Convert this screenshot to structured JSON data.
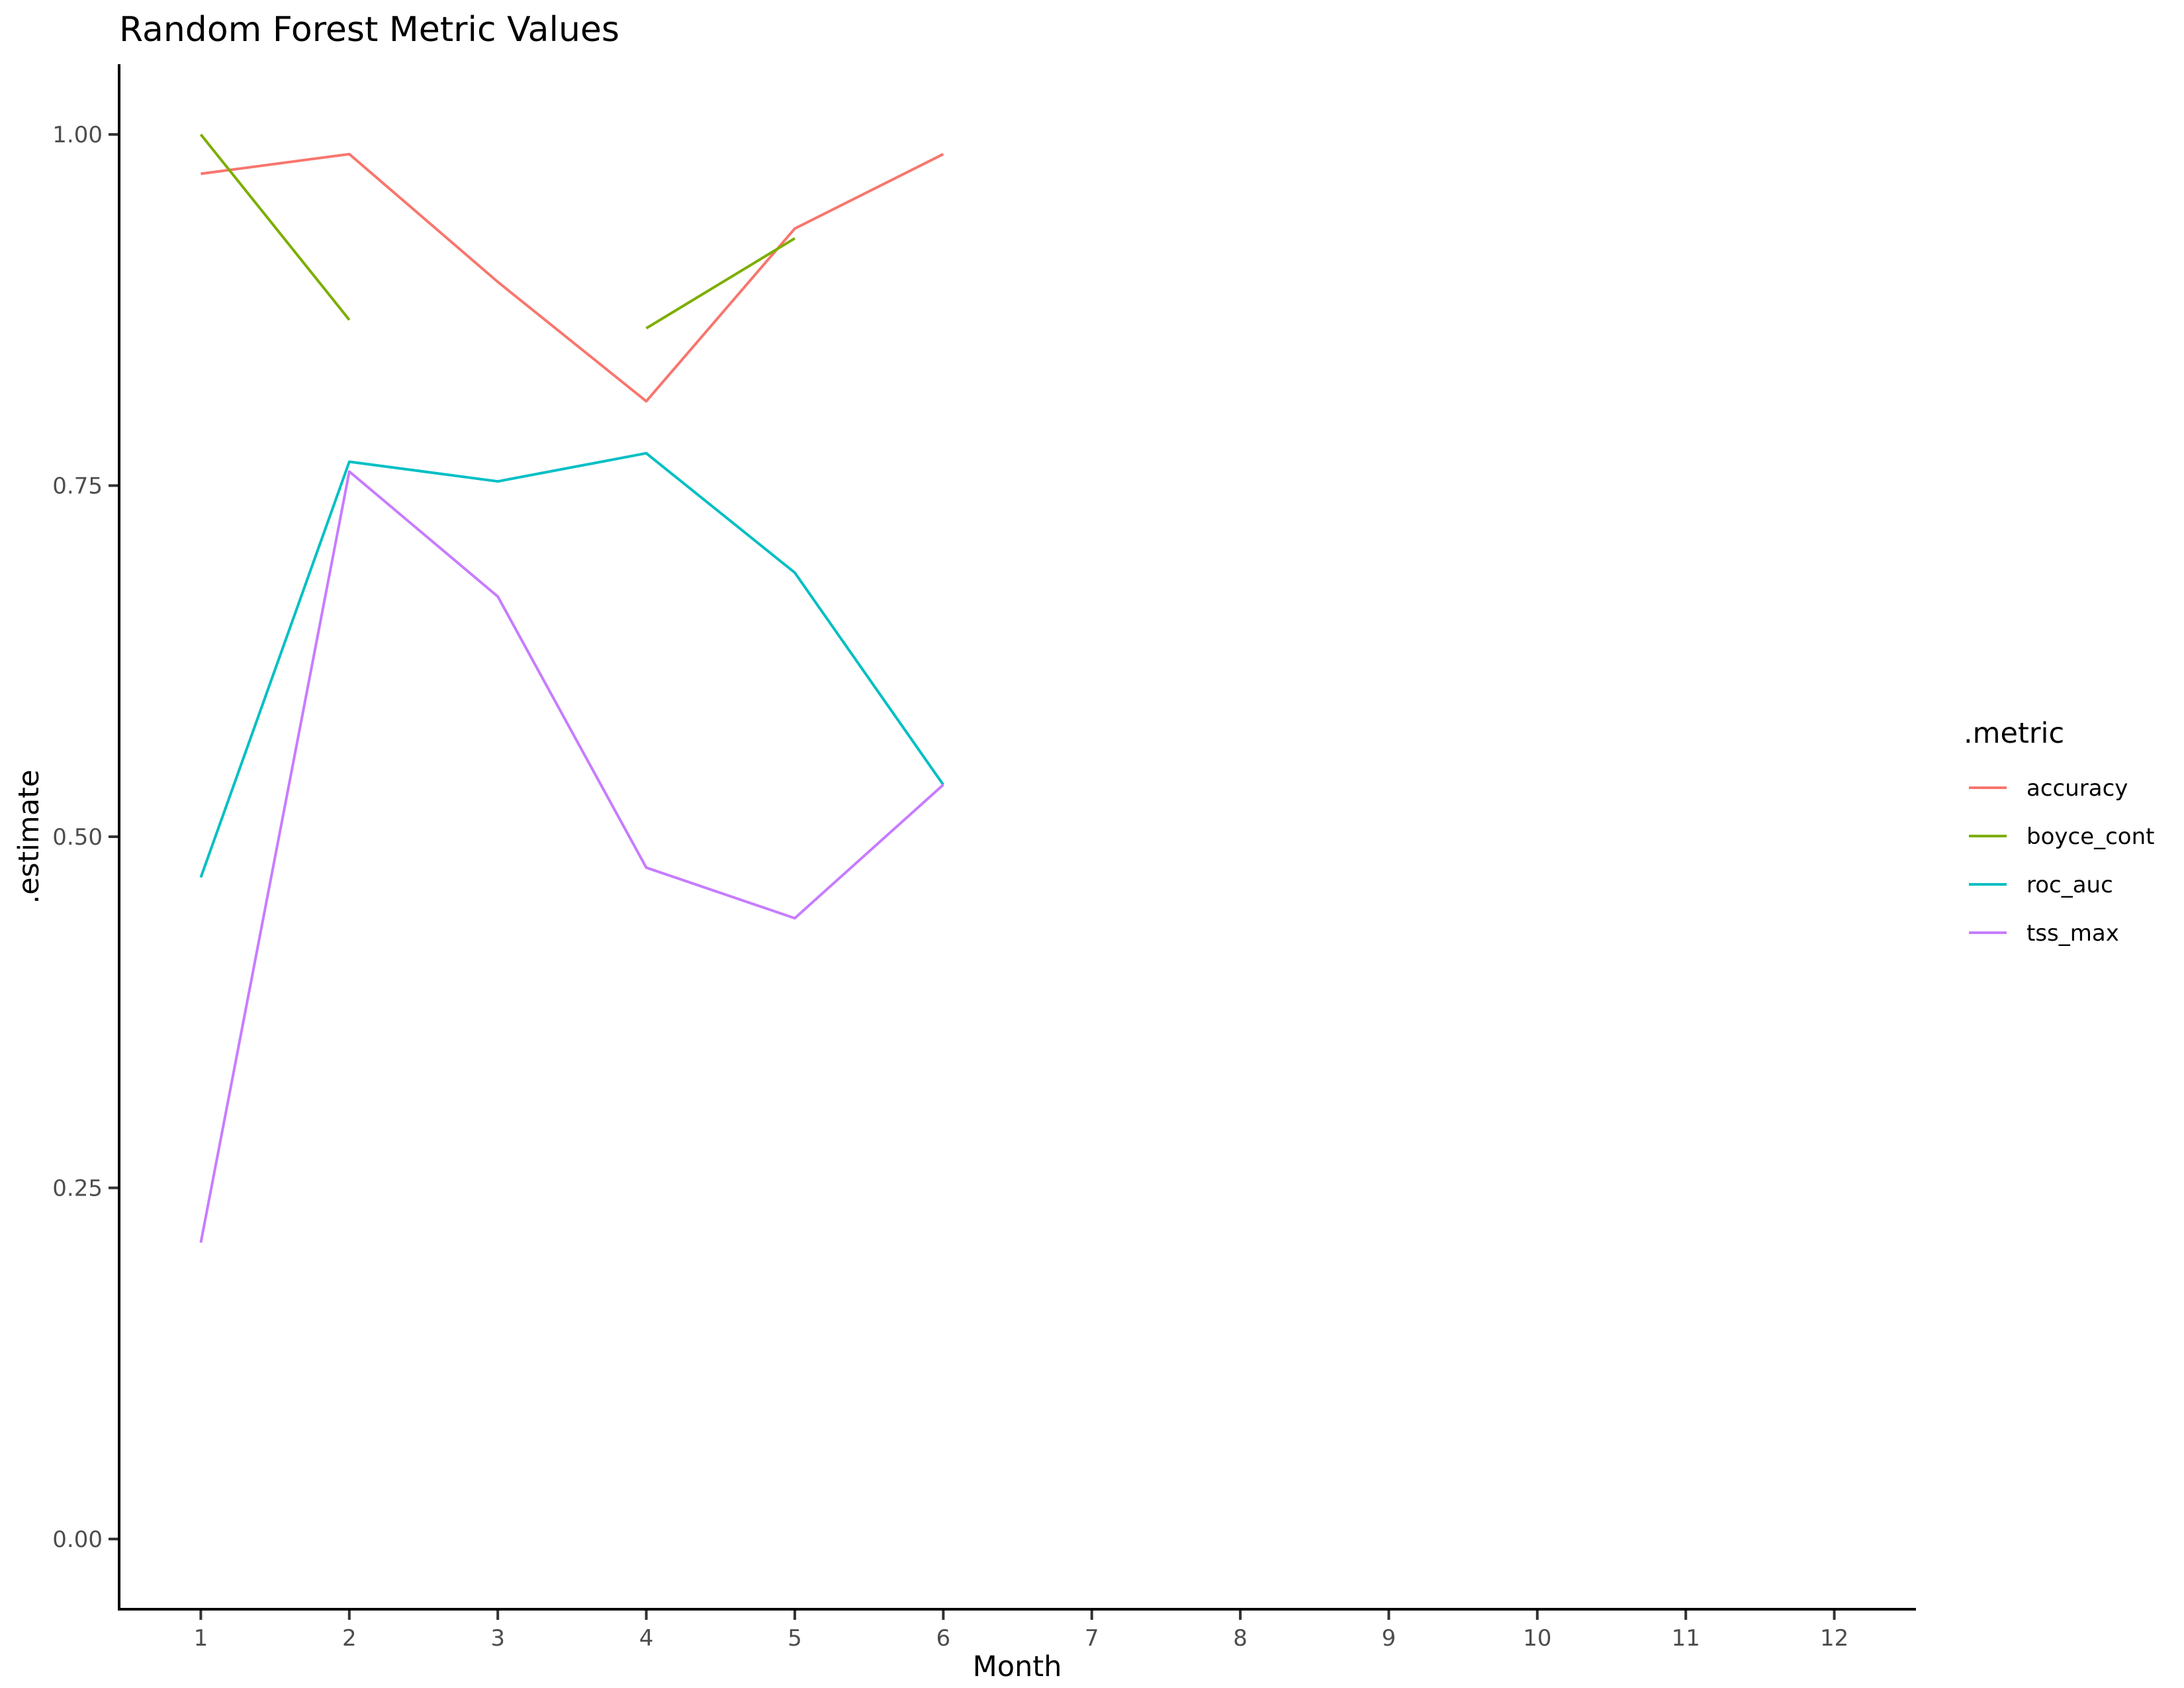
{
  "chart_data": {
    "type": "line",
    "title": "Random Forest Metric Values",
    "xlabel": "Month",
    "ylabel": ".estimate",
    "x_ticks": [
      "1",
      "2",
      "3",
      "4",
      "5",
      "6",
      "7",
      "8",
      "9",
      "10",
      "11",
      "12"
    ],
    "y_ticks": [
      "0.00",
      "0.25",
      "0.50",
      "0.75",
      "1.00"
    ],
    "xlim": [
      0.45,
      12.55
    ],
    "ylim": [
      -0.05,
      1.05
    ],
    "grid": false,
    "legend_position": "right",
    "legend": {
      "title": ".metric",
      "items": [
        "accuracy",
        "boyce_cont",
        "roc_auc",
        "tss_max"
      ]
    },
    "series": [
      {
        "name": "accuracy",
        "color": "#F8766D",
        "x": [
          1,
          2,
          3,
          4,
          5,
          6
        ],
        "y": [
          0.972,
          0.986,
          0.895,
          0.81,
          0.933,
          0.986
        ]
      },
      {
        "name": "boyce_cont",
        "color": "#7CAE00",
        "x": [
          1,
          2,
          3,
          4,
          5
        ],
        "y": [
          1.0,
          0.868,
          null,
          0.862,
          0.926
        ]
      },
      {
        "name": "roc_auc",
        "color": "#00BFC4",
        "x": [
          1,
          2,
          3,
          4,
          5,
          6
        ],
        "y": [
          0.471,
          0.767,
          0.753,
          0.773,
          0.688,
          0.537
        ]
      },
      {
        "name": "tss_max",
        "color": "#C77CFF",
        "x": [
          1,
          2,
          3,
          4,
          5,
          6
        ],
        "y": [
          0.211,
          0.76,
          0.671,
          0.478,
          0.442,
          0.537
        ]
      }
    ]
  }
}
